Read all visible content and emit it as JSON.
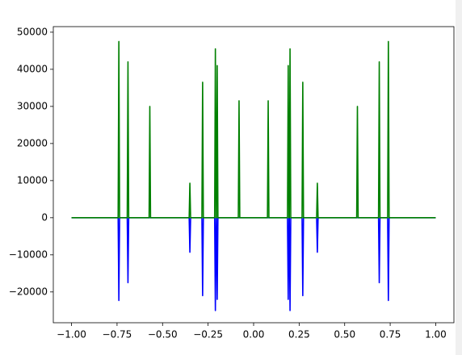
{
  "chart_data": {
    "type": "line",
    "x": [
      -1,
      -0.744,
      -0.74,
      -0.736,
      -0.694,
      -0.69,
      -0.686,
      -0.574,
      -0.57,
      -0.566,
      -0.354,
      -0.35,
      -0.346,
      -0.284,
      -0.28,
      -0.276,
      -0.214,
      -0.21,
      -0.206,
      -0.204,
      -0.2,
      -0.196,
      -0.084,
      -0.08,
      -0.076,
      0.076,
      0.08,
      0.084,
      0.186,
      0.19,
      0.194,
      0.196,
      0.2,
      0.204,
      0.266,
      0.27,
      0.274,
      0.346,
      0.35,
      0.354,
      0.566,
      0.57,
      0.574,
      0.686,
      0.69,
      0.694,
      0.736,
      0.74,
      0.744,
      1
    ],
    "series": [
      {
        "color": "#0000ff",
        "values": [
          0,
          0,
          -22300,
          0,
          0,
          -17500,
          0,
          0,
          0,
          0,
          0,
          -9300,
          0,
          0,
          -21000,
          0,
          0,
          -25000,
          0,
          0,
          -22000,
          0,
          0,
          0,
          0,
          0,
          0,
          0,
          0,
          -22000,
          0,
          0,
          -25000,
          0,
          0,
          -21000,
          0,
          0,
          -9300,
          0,
          0,
          0,
          0,
          0,
          -17500,
          0,
          0,
          -22300,
          0,
          0
        ]
      },
      {
        "color": "#008000",
        "values": [
          0,
          0,
          47500,
          0,
          0,
          42000,
          0,
          0,
          30000,
          0,
          0,
          9300,
          0,
          0,
          36500,
          0,
          0,
          45500,
          0,
          0,
          41000,
          0,
          0,
          31500,
          0,
          0,
          31500,
          0,
          0,
          41000,
          0,
          0,
          45500,
          0,
          0,
          36500,
          0,
          0,
          9300,
          0,
          0,
          30000,
          0,
          0,
          42000,
          0,
          0,
          47500,
          0,
          0
        ]
      }
    ],
    "xlim": [
      -1.1,
      1.1
    ],
    "ylim": [
      -28300,
      51500
    ],
    "xticks": [
      {
        "value": -1,
        "label": "−1.00"
      },
      {
        "value": -0.75,
        "label": "−0.75"
      },
      {
        "value": -0.5,
        "label": "−0.50"
      },
      {
        "value": -0.25,
        "label": "−0.25"
      },
      {
        "value": 0,
        "label": "0.00"
      },
      {
        "value": 0.25,
        "label": "0.25"
      },
      {
        "value": 0.5,
        "label": "0.50"
      },
      {
        "value": 0.75,
        "label": "0.75"
      },
      {
        "value": 1,
        "label": "1.00"
      }
    ],
    "yticks": [
      {
        "value": -20000,
        "label": "−20000"
      },
      {
        "value": -10000,
        "label": "−10000"
      },
      0,
      10000,
      20000,
      30000,
      40000,
      50000
    ],
    "grid": false
  }
}
